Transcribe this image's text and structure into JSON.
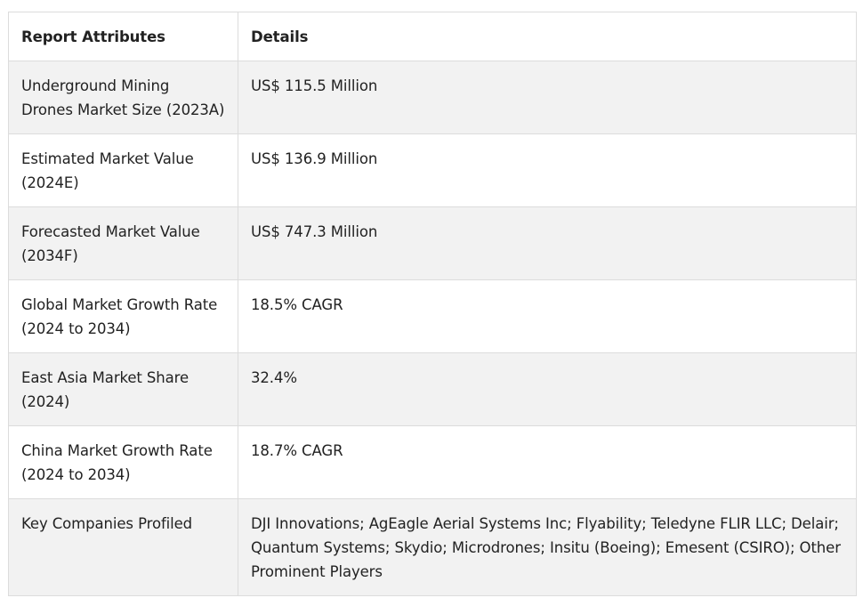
{
  "table": {
    "headers": [
      "Report Attributes",
      "Details"
    ],
    "rows": [
      {
        "attribute": "Underground Mining Drones Market Size (2023A)",
        "detail": "US$ 115.5 Million"
      },
      {
        "attribute": "Estimated Market Value (2024E)",
        "detail": "US$ 136.9 Million"
      },
      {
        "attribute": "Forecasted Market Value (2034F)",
        "detail": "US$ 747.3 Million"
      },
      {
        "attribute": "Global Market Growth Rate (2024 to 2034)",
        "detail": "18.5% CAGR"
      },
      {
        "attribute": "East Asia Market Share (2024)",
        "detail": "32.4%"
      },
      {
        "attribute": "China Market Growth Rate (2024 to 2034)",
        "detail": "18.7% CAGR"
      },
      {
        "attribute": "Key Companies Profiled",
        "detail": "DJI Innovations; AgEagle Aerial Systems Inc; Flyability; Teledyne FLIR LLC; Delair; Quantum Systems; Skydio; Microdrones; Insitu (Boeing); Emesent (CSIRO); Other Prominent Players"
      }
    ]
  }
}
